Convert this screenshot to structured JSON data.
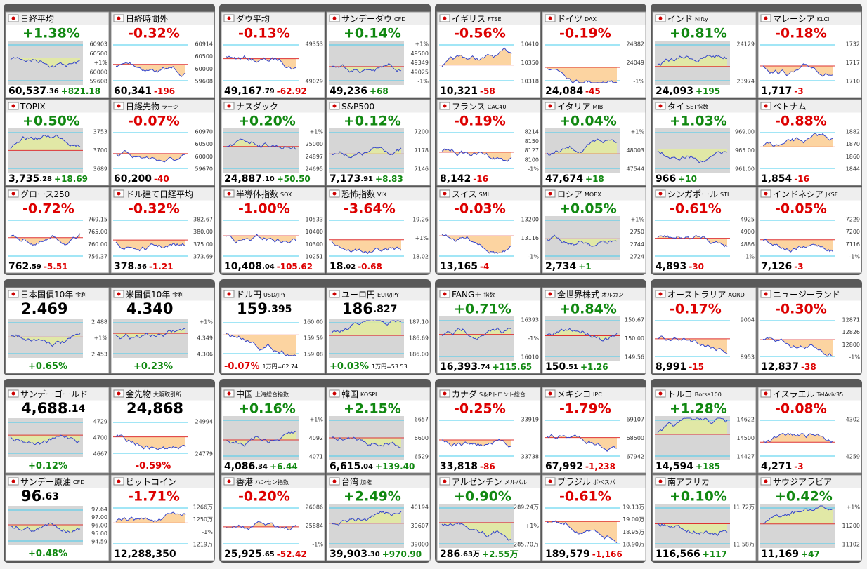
{
  "blocks": [
    {
      "rows": [
        [
          {
            "name": "日経平均",
            "change": "+1.38%",
            "price": "60,537",
            "dec": ".36",
            "diff": "+821.18",
            "axis": [
              "60903",
              "60500",
              "+1%",
              "60000",
              "59608"
            ]
          },
          {
            "name": "日経時間外",
            "change": "-0.32%",
            "price": "60,341",
            "diff": "-196",
            "axis": [
              "60914",
              "60500",
              "60000",
              "59608"
            ]
          },
          {
            "name": "ダウ平均",
            "change": "-0.13%",
            "price": "49,167",
            "dec": ".79",
            "diff": "-62.92",
            "axis": [
              "49353",
              "49029"
            ]
          },
          {
            "name": "サンデーダウ",
            "sub": "CFD",
            "change": "+0.14%",
            "price": "49,236",
            "diff": "+68",
            "axis": [
              "+1%",
              "49500",
              "49349",
              "49025",
              "-1%"
            ]
          },
          {
            "name": "イギリス",
            "sub": "FTSE",
            "change": "-0.56%",
            "price": "10,321",
            "diff": "-58",
            "axis": [
              "10410",
              "10350",
              "10318"
            ]
          },
          {
            "name": "ドイツ",
            "sub": "DAX",
            "change": "-0.19%",
            "price": "24,084",
            "diff": "-45",
            "axis": [
              "24382",
              "24049",
              "-1%"
            ]
          },
          {
            "name": "インド",
            "sub": "Nifty",
            "change": "+0.81%",
            "price": "24,093",
            "diff": "+195",
            "axis": [
              "24129",
              "23974"
            ]
          },
          {
            "name": "マレーシア",
            "sub": "KLCI",
            "change": "-0.18%",
            "price": "1,717",
            "diff": "-3",
            "axis": [
              "1732",
              "1717",
              "1710"
            ]
          }
        ],
        [
          {
            "name": "TOPIX",
            "change": "+0.50%",
            "price": "3,735",
            "dec": ".28",
            "diff": "+18.69",
            "axis": [
              "3753",
              "3700",
              "3689"
            ]
          },
          {
            "name": "日経先物",
            "sub": "ラージ",
            "change": "-0.07%",
            "price": "60,200",
            "diff": "-40",
            "axis": [
              "60970",
              "60500",
              "60000",
              "59670"
            ]
          },
          {
            "name": "ナスダック",
            "change": "+0.20%",
            "price": "24,887",
            "dec": ".10",
            "diff": "+50.50",
            "axis": [
              "+1%",
              "25000",
              "24897",
              "24695"
            ]
          },
          {
            "name": "S&P500",
            "change": "+0.12%",
            "price": "7,173",
            "dec": ".91",
            "diff": "+8.83",
            "axis": [
              "7200",
              "7178",
              "7146"
            ]
          },
          {
            "name": "フランス",
            "sub": "CAC40",
            "change": "-0.19%",
            "price": "8,142",
            "diff": "-16",
            "axis": [
              "8214",
              "8150",
              "8127",
              "8100",
              "-1%"
            ]
          },
          {
            "name": "イタリア",
            "sub": "MIB",
            "change": "+0.04%",
            "price": "47,674",
            "diff": "+18",
            "axis": [
              "+1%",
              "48003",
              "47544"
            ]
          },
          {
            "name": "タイ",
            "sub": "SET指数",
            "change": "+1.03%",
            "price": "966",
            "diff": "+10",
            "axis": [
              "969.00",
              "965.00",
              "961.00"
            ]
          },
          {
            "name": "ベトナム",
            "change": "-0.88%",
            "price": "1,854",
            "diff": "-16",
            "axis": [
              "1882",
              "1870",
              "1860",
              "1844"
            ]
          }
        ],
        [
          {
            "name": "グロース250",
            "change": "-0.72%",
            "price": "762",
            "dec": ".59",
            "diff": "-5.51",
            "axis": [
              "769.15",
              "765.00",
              "760.00",
              "756.37"
            ]
          },
          {
            "name": "ドル建て日経平均",
            "change": "-0.32%",
            "price": "378",
            "dec": ".56",
            "diff": "-1.21",
            "axis": [
              "382.67",
              "380.00",
              "375.00",
              "373.69"
            ]
          },
          {
            "name": "半導体指数",
            "sub": "SOX",
            "change": "-1.00%",
            "price": "10,408",
            "dec": ".04",
            "diff": "-105.62",
            "axis": [
              "10533",
              "10400",
              "10300",
              "10251"
            ]
          },
          {
            "name": "恐怖指数",
            "sub": "VIX",
            "change": "-3.64%",
            "price": "18",
            "dec": ".02",
            "diff": "-0.68",
            "axis": [
              "19.26",
              "+1%",
              "18.02"
            ]
          },
          {
            "name": "スイス",
            "sub": "SMI",
            "change": "-0.03%",
            "price": "13,165",
            "diff": "-4",
            "axis": [
              "13200",
              "13116",
              "-1%"
            ]
          },
          {
            "name": "ロシア",
            "sub": "MOEX",
            "change": "+0.05%",
            "price": "2,734",
            "diff": "+1",
            "axis": [
              "+1%",
              "2750",
              "2744",
              "2724"
            ]
          },
          {
            "name": "シンガポール",
            "sub": "STI",
            "change": "-0.61%",
            "price": "4,893",
            "diff": "-30",
            "axis": [
              "4925",
              "4900",
              "4886",
              "-1%"
            ]
          },
          {
            "name": "インドネシア",
            "sub": "JKSE",
            "change": "-0.05%",
            "price": "7,126",
            "diff": "-3",
            "axis": [
              "7229",
              "7200",
              "7116",
              "-1%"
            ]
          }
        ]
      ]
    },
    {
      "rows": [
        [
          {
            "name": "日本国債10年",
            "sub": "金利",
            "style": "big",
            "price": "2.469",
            "change": "+0.65%",
            "axis": [
              "2.488",
              "+1%",
              "2.453"
            ]
          },
          {
            "name": "米国債10年",
            "sub": "金利",
            "style": "big",
            "price": "4.340",
            "change": "+0.23%",
            "axis": [
              "+1%",
              "4.349",
              "4.306"
            ]
          },
          {
            "name": "ドル円",
            "sub": "USD/JPY",
            "style": "big",
            "price": "159",
            "dec": ".395",
            "change": "-0.07%",
            "note": "1万円=62.74",
            "axis": [
              "160.00",
              "159.59",
              "159.08"
            ]
          },
          {
            "name": "ユーロ円",
            "sub": "EUR/JPY",
            "style": "big",
            "price": "186",
            "dec": ".827",
            "change": "+0.03%",
            "note": "1万円=53.53",
            "axis": [
              "187.10",
              "186.69",
              "186.00"
            ]
          },
          {
            "name": "FANG+",
            "sub": "指数",
            "change": "+0.71%",
            "price": "16,393",
            "dec": ".74",
            "diff": "+115.65",
            "axis": [
              "16393",
              "-1%",
              "16010"
            ]
          },
          {
            "name": "全世界株式",
            "sub": "オルカン",
            "change": "+0.84%",
            "price": "150",
            "dec": ".51",
            "diff": "+1.26",
            "axis": [
              "150.67",
              "150.00",
              "149.56"
            ]
          },
          {
            "name": "オーストラリア",
            "sub": "AORD",
            "change": "-0.17%",
            "price": "8,991",
            "diff": "-15",
            "axis": [
              "9004",
              "8953"
            ]
          },
          {
            "name": "ニュージーランド",
            "change": "-0.30%",
            "price": "12,837",
            "diff": "-38",
            "axis": [
              "12871",
              "12826",
              "12800",
              "-1%"
            ]
          }
        ]
      ]
    },
    {
      "rows": [
        [
          {
            "name": "サンデーゴールド",
            "style": "big",
            "price": "4,688",
            "dec": ".14",
            "change": "+0.12%",
            "axis": [
              "4729",
              "4700",
              "4667"
            ]
          },
          {
            "name": "金先物",
            "sub": "大阪取引所",
            "style": "big",
            "price": "24,868",
            "change": "-0.59%",
            "axis": [
              "24994",
              "24779"
            ]
          },
          {
            "name": "中国",
            "sub": "上海総合指数",
            "change": "+0.16%",
            "price": "4,086",
            "dec": ".34",
            "diff": "+6.44",
            "axis": [
              "+1%",
              "4092",
              "4071"
            ]
          },
          {
            "name": "韓国",
            "sub": "KOSPI",
            "change": "+2.15%",
            "price": "6,615",
            "dec": ".04",
            "diff": "+139.40",
            "axis": [
              "6657",
              "6600",
              "6529"
            ]
          },
          {
            "name": "カナダ",
            "sub": "S＆Pトロント総合",
            "change": "-0.25%",
            "price": "33,818",
            "diff": "-86",
            "axis": [
              "33919",
              "33738"
            ]
          },
          {
            "name": "メキシコ",
            "sub": "IPC",
            "change": "-1.79%",
            "price": "67,992",
            "diff": "-1,238",
            "axis": [
              "69107",
              "68500",
              "67942"
            ]
          },
          {
            "name": "トルコ",
            "sub": "Borsa100",
            "change": "+1.28%",
            "price": "14,594",
            "diff": "+185",
            "axis": [
              "14622",
              "14500",
              "14427"
            ]
          },
          {
            "name": "イスラエル",
            "sub": "TelAviv35",
            "change": "-0.08%",
            "price": "4,271",
            "diff": "-3",
            "axis": [
              "4302",
              "4259"
            ]
          }
        ],
        [
          {
            "name": "サンデー原油",
            "sub": "CFD",
            "style": "big",
            "price": "96",
            "dec": ".63",
            "change": "+0.48%",
            "axis": [
              "97.64",
              "97.00",
              "96.00",
              "95.00",
              "94.59"
            ]
          },
          {
            "name": "ビットコイン",
            "change": "-1.71%",
            "price": "12,288,350",
            "axis": [
              "1266万",
              "1250万",
              "-1%",
              "1219万"
            ]
          },
          {
            "name": "香港",
            "sub": "ハンセン指数",
            "change": "-0.20%",
            "price": "25,925",
            "dec": ".65",
            "diff": "-52.42",
            "axis": [
              "26086",
              "25884",
              "-1%"
            ]
          },
          {
            "name": "台湾",
            "sub": "加権",
            "change": "+2.49%",
            "price": "39,903",
            "dec": ".30",
            "diff": "+970.90",
            "axis": [
              "40194",
              "39607",
              "39000"
            ]
          },
          {
            "name": "アルゼンチン",
            "sub": "メルバル",
            "change": "+0.90%",
            "price": "286",
            "dec": ".63万",
            "diff": "+2.55万",
            "axis": [
              "289.24万",
              "+1%",
              "285.70万"
            ]
          },
          {
            "name": "ブラジル",
            "sub": "ボベスパ",
            "change": "-0.61%",
            "price": "189,579",
            "diff": "-1,166",
            "axis": [
              "19.13万",
              "19.00万",
              "18.95万",
              "18.90万"
            ]
          },
          {
            "name": "南アフリカ",
            "change": "+0.10%",
            "price": "116,566",
            "diff": "+117",
            "axis": [
              "11.72万",
              "11.58万"
            ]
          },
          {
            "name": "サウジアラビア",
            "change": "+0.42%",
            "price": "11,169",
            "diff": "+47",
            "axis": [
              "+1%",
              "11200",
              "11102"
            ]
          }
        ]
      ]
    }
  ]
}
